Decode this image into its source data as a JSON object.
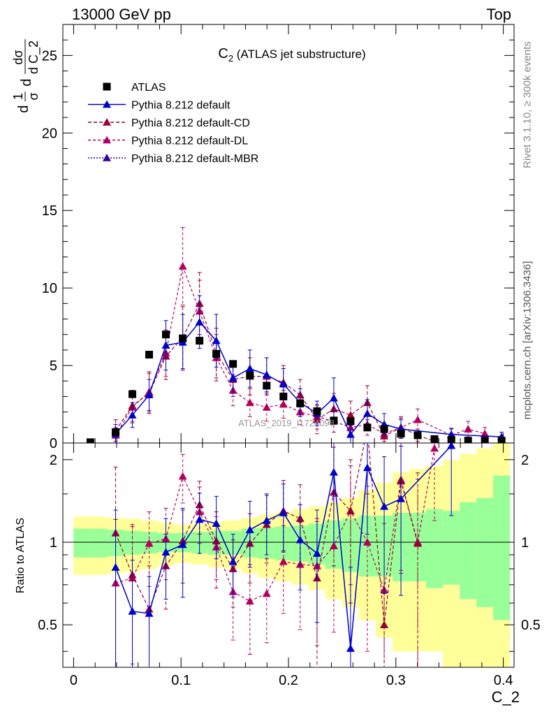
{
  "header": {
    "left": "13000 GeV pp",
    "right": "Top"
  },
  "side": {
    "rivet": "Rivet 3.1.10, ≥ 300k events",
    "mcplots": "mcplots.cern.ch [arXiv:1306.3436]"
  },
  "chart_data": {
    "type": "scatter",
    "title": "C",
    "title_sub": "2",
    "title_rest": " (ATLAS jet substructure)",
    "watermark": "ATLAS_2019_I1724098",
    "xlabel": "C_2",
    "ylabel_parts": [
      "d",
      "1",
      "σ",
      "d",
      "dσ",
      "d C_2"
    ],
    "ratio_ylabel": "Ratio to ATLAS",
    "xlim": [
      -0.01,
      0.41
    ],
    "ylim": [
      0,
      27
    ],
    "ratio_ylim": [
      0.35,
      2.3
    ],
    "xticks": [
      "0",
      "0.1",
      "0.2",
      "0.3",
      "0.4"
    ],
    "xtick_values": [
      0,
      0.1,
      0.2,
      0.3,
      0.4
    ],
    "yticks": [
      "0",
      "5",
      "10",
      "15",
      "20",
      "25"
    ],
    "ytick_values": [
      0,
      5,
      10,
      15,
      20,
      25
    ],
    "ratio_yticks": [
      "0.5",
      "1",
      "2"
    ],
    "ratio_ytick_values": [
      0.5,
      1,
      2
    ],
    "legend": {
      "position": "top-left",
      "entries": [
        "ATLAS",
        "Pythia 8.212 default",
        "Pythia 8.212 default-CD",
        "Pythia 8.212 default-DL",
        "Pythia 8.212 default-MBR"
      ]
    },
    "colors": {
      "data": "#000000",
      "default": "#0000cc",
      "cd": "#990033",
      "dl": "#b3005f",
      "mbr": "#330099",
      "band_inner": "#99ff99",
      "band_outer": "#ffff99"
    },
    "x": [
      0.0156,
      0.0312,
      0.0391,
      0.0547,
      0.0703,
      0.0859,
      0.1016,
      0.1172,
      0.1328,
      0.1484,
      0.1641,
      0.1797,
      0.1953,
      0.2109,
      0.2266,
      0.2422,
      0.2578,
      0.2734,
      0.2891,
      0.3047,
      0.3203,
      0.3359,
      0.3516,
      0.3672,
      0.3828,
      0.3984
    ],
    "atlas": [
      0.05,
      null,
      0.7,
      3.15,
      5.7,
      7.0,
      6.75,
      6.6,
      5.75,
      5.1,
      4.35,
      3.7,
      3.0,
      2.55,
      2.05,
      1.45,
      1.4,
      1.0,
      0.9,
      0.6,
      0.5,
      0.25,
      0.2,
      0.15,
      0.15,
      0.15
    ],
    "series": [
      {
        "name": "Pythia 8.212 default",
        "x": [
          0.0391,
          0.0547,
          0.0703,
          0.0859,
          0.1016,
          0.1172,
          0.1328,
          0.1484,
          0.1641,
          0.1797,
          0.1953,
          0.2109,
          0.2266,
          0.2422,
          0.2578,
          0.2734,
          0.2891,
          0.3047,
          0.3516,
          0.3984
        ],
        "values": [
          0.6,
          1.8,
          3.1,
          6.3,
          6.5,
          7.8,
          6.6,
          4.2,
          4.8,
          4.4,
          3.8,
          2.6,
          1.9,
          2.9,
          0.55,
          1.9,
          1.2,
          0.9,
          0.55,
          0.4
        ],
        "errors": [
          0.6,
          0.8,
          1.0,
          1.6,
          1.8,
          1.7,
          1.7,
          1.0,
          1.2,
          1.1,
          1.0,
          0.9,
          0.8,
          1.3,
          0.6,
          0.9,
          0.7,
          0.6,
          0.4,
          0.3
        ]
      },
      {
        "name": "Pythia 8.212 default-CD",
        "x": [
          0.0391,
          0.0547,
          0.0703,
          0.0859,
          0.1016,
          0.1172,
          0.1328,
          0.1484,
          0.1641,
          0.1797,
          0.1953,
          0.2109,
          0.2266,
          0.2422,
          0.2578,
          0.2734,
          0.2891,
          0.3047,
          0.3203,
          0.3359
        ],
        "values": [
          0.8,
          2.4,
          3.2,
          5.6,
          6.8,
          9.0,
          5.8,
          4.1,
          4.3,
          4.3,
          3.9,
          3.1,
          1.5,
          2.2,
          1.8,
          2.6,
          0.45,
          1.0,
          0.5,
          0.1
        ],
        "errors": [
          0.7,
          1.0,
          1.3,
          1.5,
          2.0,
          2.0,
          1.6,
          1.1,
          1.2,
          1.2,
          1.1,
          1.0,
          0.9,
          1.0,
          0.9,
          1.1,
          0.5,
          0.7,
          0.4,
          0.2
        ]
      },
      {
        "name": "Pythia 8.212 default-DL",
        "x": [
          0.0391,
          0.0547,
          0.0703,
          0.0859,
          0.1016,
          0.1172,
          0.1328,
          0.1484,
          0.1641,
          0.1797,
          0.1953,
          0.2109,
          0.2266,
          0.2422,
          0.2578,
          0.2734,
          0.2891,
          0.3047,
          0.3203,
          0.3516,
          0.3672,
          0.3828
        ],
        "values": [
          0.5,
          2.3,
          3.3,
          5.8,
          11.4,
          8.5,
          5.5,
          3.4,
          2.6,
          2.3,
          2.5,
          2.0,
          1.7,
          1.4,
          1.0,
          1.2,
          0.6,
          1.0,
          1.5,
          0.5,
          0.9,
          0.6
        ],
        "errors": [
          0.5,
          1.0,
          1.3,
          1.5,
          2.5,
          2.0,
          1.5,
          1.0,
          0.9,
          0.9,
          0.9,
          0.8,
          0.8,
          0.7,
          0.6,
          0.7,
          0.5,
          0.6,
          0.7,
          0.4,
          0.5,
          0.4
        ]
      }
    ],
    "ratio_series": [
      {
        "name": "Pythia 8.212 default",
        "x": [
          0.0391,
          0.0547,
          0.0703,
          0.0859,
          0.1016,
          0.1172,
          0.1328,
          0.1484,
          0.1641,
          0.1797,
          0.1953,
          0.2109,
          0.2266,
          0.2422,
          0.2578,
          0.2734,
          0.2891,
          0.3047,
          0.3516
        ],
        "values": [
          0.81,
          0.56,
          0.55,
          0.92,
          0.98,
          1.21,
          1.17,
          0.85,
          1.11,
          1.2,
          1.28,
          1.02,
          0.91,
          1.8,
          0.41,
          1.87,
          1.35,
          1.44,
          2.25
        ],
        "errors": [
          0.5,
          0.3,
          0.2,
          0.3,
          0.35,
          0.3,
          0.3,
          0.22,
          0.3,
          0.3,
          0.35,
          0.35,
          0.4,
          0.8,
          0.4,
          0.8,
          0.7,
          0.8,
          1.0
        ]
      },
      {
        "name": "Pythia 8.212 default-CD",
        "x": [
          0.0391,
          0.0547,
          0.0703,
          0.0859,
          0.1016,
          0.1172,
          0.1328,
          0.1484,
          0.1641,
          0.1797,
          0.1953,
          0.2109,
          0.2266,
          0.2422,
          0.2578,
          0.2734,
          0.2891,
          0.3047,
          0.3203
        ],
        "values": [
          1.08,
          0.76,
          0.57,
          0.82,
          1.01,
          1.37,
          1.01,
          0.8,
          0.99,
          1.16,
          1.3,
          1.22,
          0.74,
          1.52,
          1.3,
          2.6,
          0.5,
          1.67,
          0.99
        ],
        "errors": [
          0.8,
          0.4,
          0.25,
          0.25,
          0.3,
          0.3,
          0.28,
          0.22,
          0.28,
          0.32,
          0.38,
          0.4,
          0.45,
          0.7,
          0.7,
          1.1,
          0.5,
          0.9,
          0.8
        ]
      },
      {
        "name": "Pythia 8.212 default-DL",
        "x": [
          0.0391,
          0.0547,
          0.0703,
          0.0859,
          0.1016,
          0.1172,
          0.1328,
          0.1484,
          0.1641,
          0.1797,
          0.1953,
          0.2109,
          0.2266,
          0.2422,
          0.2578,
          0.2734,
          0.2891,
          0.3047,
          0.3203,
          0.3359
        ],
        "values": [
          0.71,
          0.74,
          0.99,
          1.03,
          1.74,
          1.29,
          0.96,
          0.66,
          0.61,
          0.65,
          0.85,
          0.83,
          0.82,
          0.97,
          1.3,
          1.0,
          0.67,
          1.69,
          1.0,
          2.2
        ],
        "errors": [
          0.5,
          0.4,
          0.3,
          0.3,
          0.35,
          0.3,
          0.28,
          0.22,
          0.22,
          0.22,
          0.3,
          0.35,
          0.4,
          0.5,
          0.6,
          0.6,
          0.5,
          0.9,
          0.7,
          1.0
        ]
      }
    ],
    "band": {
      "edges": [
        0.0,
        0.0156,
        0.0312,
        0.0469,
        0.0625,
        0.0781,
        0.0938,
        0.1094,
        0.125,
        0.1406,
        0.1563,
        0.1719,
        0.1875,
        0.2031,
        0.2188,
        0.2344,
        0.25,
        0.2656,
        0.2813,
        0.2969,
        0.3125,
        0.3281,
        0.3438,
        0.3594,
        0.375,
        0.3906,
        0.4063
      ],
      "inner_lo": [
        0.88,
        0.88,
        0.89,
        0.9,
        0.91,
        0.92,
        0.92,
        0.91,
        0.9,
        0.9,
        0.88,
        0.87,
        0.86,
        0.85,
        0.83,
        0.8,
        0.78,
        0.75,
        0.75,
        0.72,
        0.72,
        0.68,
        0.7,
        0.62,
        0.58,
        0.52
      ],
      "inner_hi": [
        1.12,
        1.12,
        1.11,
        1.1,
        1.09,
        1.08,
        1.08,
        1.09,
        1.1,
        1.1,
        1.12,
        1.13,
        1.14,
        1.15,
        1.17,
        1.2,
        1.22,
        1.25,
        1.25,
        1.28,
        1.28,
        1.32,
        1.3,
        1.4,
        1.45,
        1.75
      ],
      "outer_lo": [
        0.76,
        0.76,
        0.77,
        0.78,
        0.8,
        0.82,
        0.84,
        0.83,
        0.81,
        0.8,
        0.77,
        0.74,
        0.72,
        0.7,
        0.67,
        0.62,
        0.58,
        0.52,
        0.45,
        0.4,
        0.4,
        0.4,
        0.35,
        0.35,
        0.35,
        0.35
      ],
      "outer_hi": [
        1.24,
        1.24,
        1.23,
        1.22,
        1.2,
        1.18,
        1.16,
        1.17,
        1.19,
        1.2,
        1.23,
        1.26,
        1.29,
        1.32,
        1.35,
        1.4,
        1.45,
        1.55,
        1.65,
        1.8,
        1.85,
        1.9,
        2.0,
        2.1,
        2.2,
        2.3
      ]
    }
  }
}
